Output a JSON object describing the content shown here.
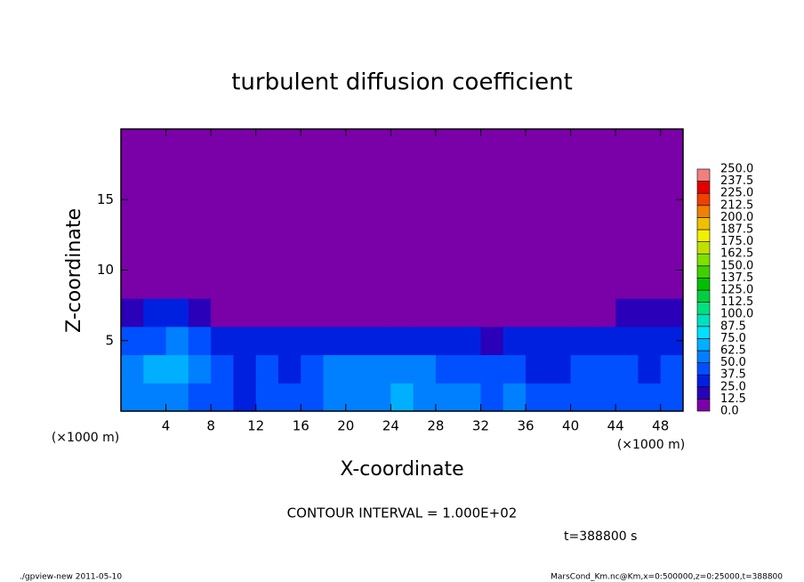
{
  "chart_data": {
    "type": "contour",
    "title": "turbulent diffusion coefficient",
    "x_label": "X-coordinate",
    "y_label": "Z-coordinate",
    "x_unit": "(×1000 m)",
    "annotation": "CONTOUR INTERVAL = 1.000E+02",
    "time_label": "t=388800 s",
    "footer_left": "./gpview-new  2011-05-10",
    "footer_right": "MarsCond_Km.nc@Km,x=0:500000,z=0:25000,t=388800",
    "xlim": [
      0,
      50
    ],
    "ylim": [
      0,
      20
    ],
    "xticks": [
      4,
      8,
      12,
      16,
      20,
      24,
      28,
      32,
      36,
      40,
      44,
      48
    ],
    "yticks": [
      5,
      10,
      15
    ],
    "x": [
      1,
      3,
      5,
      7,
      9,
      11,
      13,
      15,
      17,
      19,
      21,
      23,
      25,
      27,
      29,
      31,
      33,
      35,
      37,
      39,
      41,
      43,
      45,
      47,
      49
    ],
    "y": [
      1,
      3,
      5,
      7,
      9,
      11,
      13,
      15,
      17,
      19
    ],
    "z": [
      [
        55,
        60,
        50,
        45,
        40,
        35,
        40,
        38,
        45,
        50,
        55,
        60,
        65,
        60,
        55,
        50,
        45,
        50,
        45,
        40,
        42,
        45,
        40,
        38,
        40
      ],
      [
        50,
        70,
        65,
        55,
        40,
        35,
        38,
        35,
        45,
        50,
        50,
        55,
        55,
        50,
        45,
        40,
        38,
        40,
        35,
        35,
        38,
        40,
        38,
        35,
        38
      ],
      [
        40,
        45,
        50,
        40,
        30,
        25,
        30,
        28,
        30,
        30,
        30,
        32,
        35,
        30,
        28,
        25,
        22,
        28,
        30,
        30,
        32,
        35,
        32,
        30,
        30
      ],
      [
        20,
        25,
        30,
        18,
        10,
        5,
        5,
        0,
        0,
        0,
        0,
        0,
        0,
        0,
        0,
        0,
        0,
        0,
        0,
        5,
        10,
        12,
        15,
        15,
        15
      ],
      [
        0,
        0,
        10,
        0,
        0,
        0,
        0,
        0,
        0,
        0,
        0,
        0,
        0,
        0,
        0,
        0,
        0,
        0,
        0,
        0,
        0,
        0,
        0,
        0,
        0
      ],
      [
        0,
        0,
        0,
        0,
        0,
        0,
        0,
        0,
        0,
        0,
        0,
        0,
        0,
        0,
        0,
        0,
        0,
        0,
        0,
        0,
        0,
        0,
        0,
        0,
        0
      ],
      [
        0,
        0,
        0,
        0,
        0,
        0,
        0,
        0,
        0,
        0,
        0,
        0,
        0,
        0,
        0,
        0,
        0,
        0,
        0,
        0,
        0,
        0,
        0,
        0,
        0
      ],
      [
        0,
        0,
        0,
        0,
        0,
        0,
        0,
        0,
        0,
        0,
        0,
        0,
        0,
        0,
        0,
        0,
        0,
        0,
        0,
        0,
        0,
        0,
        0,
        0,
        0
      ],
      [
        0,
        0,
        0,
        0,
        0,
        0,
        0,
        0,
        0,
        0,
        0,
        0,
        0,
        0,
        0,
        0,
        0,
        0,
        0,
        0,
        0,
        0,
        0,
        0,
        0
      ],
      [
        0,
        0,
        0,
        0,
        0,
        0,
        0,
        0,
        0,
        0,
        0,
        0,
        0,
        0,
        0,
        0,
        0,
        0,
        0,
        0,
        0,
        0,
        0,
        0,
        0
      ]
    ],
    "levels": [
      {
        "value": 0,
        "label": "0.0"
      },
      12.5,
      {
        "value": 25,
        "label": "25.0"
      },
      37.5,
      {
        "value": 50,
        "label": "50.0"
      },
      62.5,
      {
        "value": 75,
        "label": "75.0"
      },
      87.5,
      {
        "value": 100,
        "label": "100.0"
      },
      112.5,
      {
        "value": 125,
        "label": "125.0"
      },
      137.5,
      {
        "value": 150,
        "label": "150.0"
      },
      162.5,
      {
        "value": 175,
        "label": "175.0"
      },
      187.5,
      {
        "value": 200,
        "label": "200.0"
      },
      212.5,
      {
        "value": 225,
        "label": "225.0"
      },
      237.5,
      {
        "value": 250,
        "label": "250.0"
      }
    ],
    "colors": [
      "#7a00a8",
      "#2a00b8",
      "#0020e0",
      "#0050ff",
      "#0080ff",
      "#00b0ff",
      "#00e0ff",
      "#00e0c0",
      "#00e080",
      "#00d040",
      "#00c000",
      "#40d000",
      "#80e000",
      "#c0e000",
      "#f0f000",
      "#f0c000",
      "#f08000",
      "#f04000",
      "#e00000",
      "#f08080"
    ]
  }
}
